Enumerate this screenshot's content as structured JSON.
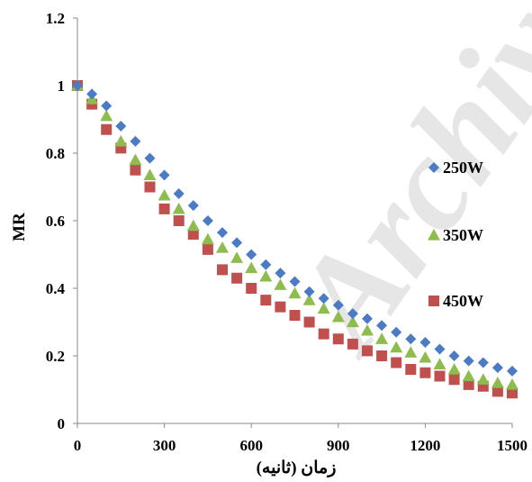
{
  "watermark": "Archive",
  "chart_data": {
    "type": "scatter",
    "title": "",
    "xlabel": "زمان (ثانیه)",
    "ylabel": "MR",
    "xlim": [
      0,
      1500
    ],
    "ylim": [
      0,
      1.2
    ],
    "x_ticks": [
      "0",
      "300",
      "600",
      "900",
      "1200",
      "1500"
    ],
    "y_ticks": [
      "0",
      "0.2",
      "0.4",
      "0.6",
      "0.8",
      "1",
      "1.2"
    ],
    "grid": false,
    "legend_position": "right",
    "series": [
      {
        "name": "250W",
        "marker": "diamond",
        "color": "#4a7bc4",
        "x": [
          0,
          50,
          100,
          150,
          200,
          250,
          300,
          350,
          400,
          450,
          500,
          550,
          600,
          650,
          700,
          750,
          800,
          850,
          900,
          950,
          1000,
          1050,
          1100,
          1150,
          1200,
          1250,
          1300,
          1350,
          1400,
          1450,
          1500
        ],
        "y": [
          1.0,
          0.975,
          0.94,
          0.88,
          0.835,
          0.785,
          0.735,
          0.68,
          0.645,
          0.6,
          0.565,
          0.535,
          0.5,
          0.47,
          0.445,
          0.42,
          0.39,
          0.37,
          0.35,
          0.325,
          0.31,
          0.29,
          0.27,
          0.25,
          0.24,
          0.22,
          0.2,
          0.185,
          0.18,
          0.165,
          0.155
        ]
      },
      {
        "name": "350W",
        "marker": "triangle",
        "color": "#8fbc4f",
        "x": [
          0,
          50,
          100,
          150,
          200,
          250,
          300,
          350,
          400,
          450,
          500,
          550,
          600,
          650,
          700,
          750,
          800,
          850,
          900,
          950,
          1000,
          1050,
          1100,
          1150,
          1200,
          1250,
          1300,
          1350,
          1400,
          1450,
          1500
        ],
        "y": [
          1.0,
          0.96,
          0.91,
          0.835,
          0.78,
          0.735,
          0.675,
          0.635,
          0.585,
          0.545,
          0.52,
          0.49,
          0.46,
          0.435,
          0.41,
          0.385,
          0.365,
          0.34,
          0.315,
          0.3,
          0.275,
          0.25,
          0.225,
          0.21,
          0.195,
          0.175,
          0.16,
          0.14,
          0.13,
          0.12,
          0.115
        ]
      },
      {
        "name": "450W",
        "marker": "square",
        "color": "#c0504d",
        "x": [
          0,
          50,
          100,
          150,
          200,
          250,
          300,
          350,
          400,
          450,
          500,
          550,
          600,
          650,
          700,
          750,
          800,
          850,
          900,
          950,
          1000,
          1050,
          1100,
          1150,
          1200,
          1250,
          1300,
          1350,
          1400,
          1450,
          1500
        ],
        "y": [
          1.0,
          0.945,
          0.87,
          0.815,
          0.75,
          0.7,
          0.635,
          0.6,
          0.56,
          0.515,
          0.455,
          0.43,
          0.4,
          0.365,
          0.345,
          0.32,
          0.3,
          0.265,
          0.25,
          0.235,
          0.215,
          0.2,
          0.18,
          0.16,
          0.15,
          0.14,
          0.13,
          0.115,
          0.11,
          0.095,
          0.09
        ]
      }
    ]
  }
}
